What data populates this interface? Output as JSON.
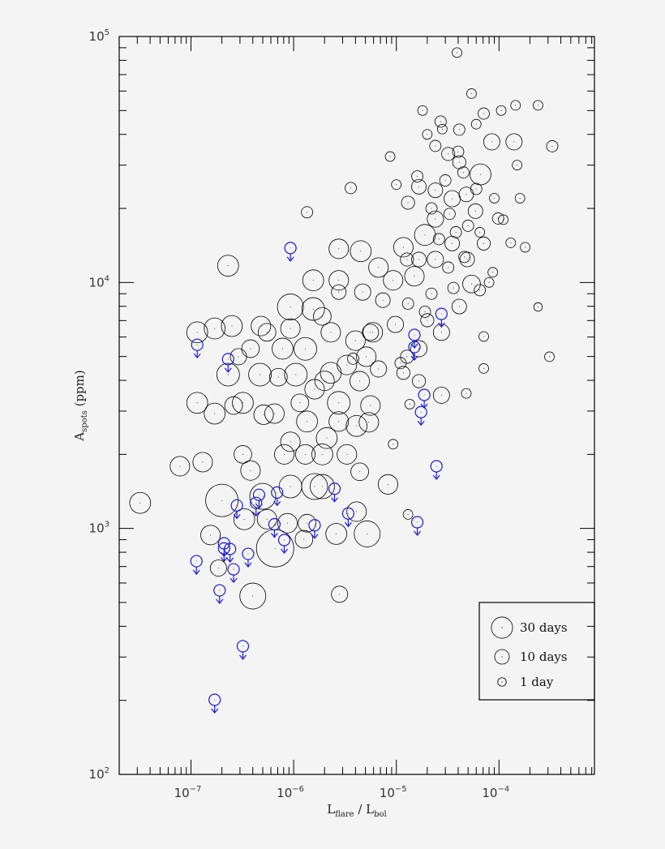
{
  "chart_data": {
    "type": "scatter",
    "title": "",
    "xlabel": {
      "main": "L",
      "sub1": "flare",
      "sep": " / ",
      "main2": "L",
      "sub2": "bol"
    },
    "ylabel": {
      "main": "A",
      "sub": "spots",
      "unit": " (ppm)"
    },
    "x_scale": "log",
    "y_scale": "log",
    "xlim": [
      2e-08,
      0.00085
    ],
    "ylim": [
      100,
      100000
    ],
    "grid": false,
    "x_ticks": [
      {
        "value": 1e-07,
        "base": "10",
        "exp": "−7"
      },
      {
        "value": 1e-06,
        "base": "10",
        "exp": "−6"
      },
      {
        "value": 1e-05,
        "base": "10",
        "exp": "−5"
      },
      {
        "value": 0.0001,
        "base": "10",
        "exp": "−4"
      }
    ],
    "y_ticks": [
      {
        "value": 100,
        "base": "10",
        "exp": "2"
      },
      {
        "value": 1000,
        "base": "10",
        "exp": "3"
      },
      {
        "value": 10000,
        "base": "10",
        "exp": "4"
      },
      {
        "value": 100000,
        "base": "10",
        "exp": "5"
      }
    ],
    "marker_size_encodes": "days",
    "legend": {
      "placement": "bottom-right",
      "entries": [
        {
          "label": "30 days",
          "days": 30
        },
        {
          "label": "10 days",
          "days": 10
        },
        {
          "label": "1 day",
          "days": 1
        }
      ]
    },
    "colors": {
      "detections": "#000000",
      "upper_limits": "#1a1ad6",
      "background": "#f4f4f4"
    },
    "series": [
      {
        "kind": "detections",
        "fields": [
          "x",
          "y",
          "days"
        ],
        "points": [
          [
            3.2e-08,
            1270,
            29
          ],
          [
            7.8e-08,
            1790,
            24
          ],
          [
            1.3e-07,
            1860,
            24
          ],
          [
            2.3e-07,
            11700,
            29
          ],
          [
            1.15e-07,
            6270,
            29
          ],
          [
            2.5e-07,
            6650,
            29
          ],
          [
            4.8e-07,
            6650,
            24
          ],
          [
            2.3e-07,
            4220,
            36
          ],
          [
            1.15e-07,
            3240,
            29
          ],
          [
            1.7e-07,
            2930,
            29
          ],
          [
            3.2e-07,
            3240,
            29
          ],
          [
            5.1e-07,
            2900,
            24
          ],
          [
            4.7e-07,
            4220,
            36
          ],
          [
            2e-07,
            1300,
            89
          ],
          [
            3.3e-07,
            1090,
            29
          ],
          [
            6.6e-07,
            830,
            124
          ],
          [
            4e-07,
            531,
            51
          ],
          [
            5e-07,
            1350,
            51
          ],
          [
            9.3e-07,
            1480,
            36
          ],
          [
            1.6e-06,
            1480,
            51
          ],
          [
            1.3e-06,
            2000,
            24
          ],
          [
            8.1e-07,
            2000,
            24
          ],
          [
            2.1e-06,
            2330,
            29
          ],
          [
            4.1e-06,
            2610,
            29
          ],
          [
            5.4e-06,
            2700,
            24
          ],
          [
            2.6e-06,
            950,
            29
          ],
          [
            5.2e-06,
            950,
            51
          ],
          [
            2.8e-06,
            540,
            14
          ],
          [
            1.26e-06,
            904,
            18
          ],
          [
            4.1e-06,
            1170,
            24
          ],
          [
            8.3e-06,
            1510,
            24
          ],
          [
            4.4e-06,
            1700,
            18
          ],
          [
            9.3e-07,
            7950,
            51
          ],
          [
            1.55e-06,
            7800,
            36
          ],
          [
            1.3e-06,
            5370,
            36
          ],
          [
            2.3e-06,
            6270,
            24
          ],
          [
            1.05e-06,
            4220,
            36
          ],
          [
            2e-06,
            3980,
            24
          ],
          [
            1.15e-06,
            3240,
            18
          ],
          [
            2.75e-06,
            3240,
            36
          ],
          [
            1.55e-06,
            10200,
            29
          ],
          [
            2.75e-06,
            10200,
            24
          ],
          [
            4e-06,
            5800,
            24
          ],
          [
            5.9e-06,
            6270,
            24
          ],
          [
            9.3e-06,
            10200,
            24
          ],
          [
            6.7e-06,
            11500,
            24
          ],
          [
            4.5e-06,
            13400,
            29
          ],
          [
            2.75e-06,
            13700,
            24
          ],
          [
            1.5e-05,
            10600,
            24
          ],
          [
            1.17e-05,
            13900,
            24
          ],
          [
            1.9e-05,
            15600,
            29
          ],
          [
            2.4e-05,
            18100,
            14
          ],
          [
            3.5e-05,
            21900,
            14
          ],
          [
            6.6e-05,
            27500,
            29
          ],
          [
            8.5e-05,
            37300,
            14
          ],
          [
            0.00014,
            37300,
            14
          ],
          [
            0.00033,
            35800,
            4
          ],
          [
            0.00024,
            52500,
            2
          ],
          [
            0.000145,
            52500,
            2
          ],
          [
            3.9e-05,
            86000,
            2
          ],
          [
            5.4e-05,
            58600,
            2
          ],
          [
            1.8e-05,
            50000,
            2
          ],
          [
            2.4e-05,
            35900,
            4
          ],
          [
            8.7e-06,
            32500,
            2
          ],
          [
            3.6e-06,
            24200,
            4
          ],
          [
            1.35e-06,
            19300,
            4
          ],
          [
            0.00031,
            4990,
            2
          ],
          [
            7.1e-05,
            6030,
            2
          ],
          [
            7.1e-05,
            4470,
            2
          ],
          [
            4.8e-05,
            3540,
            2
          ],
          [
            2.75e-05,
            3480,
            14
          ],
          [
            1.35e-05,
            3200,
            2
          ],
          [
            9.3e-06,
            2200,
            2
          ],
          [
            1.3e-05,
            1140,
            2
          ],
          [
            4.1e-05,
            7980,
            10
          ],
          [
            5.4e-05,
            9860,
            18
          ],
          [
            8.7e-05,
            11000,
            2
          ],
          [
            9.8e-05,
            18200,
            4
          ],
          [
            0.00018,
            13900,
            2
          ],
          [
            0.00024,
            7950,
            1
          ],
          [
            2.75e-05,
            6270,
            14
          ],
          [
            2e-05,
            7020,
            7
          ],
          [
            1.66e-05,
            5380,
            14
          ],
          [
            1.27e-05,
            4990,
            7
          ],
          [
            2.4e-05,
            23700,
            10
          ],
          [
            1.66e-05,
            24500,
            10
          ],
          [
            1.3e-05,
            21100,
            7
          ],
          [
            3.2e-05,
            33300,
            7
          ],
          [
            4.1e-05,
            41800,
            4
          ],
          [
            2.7e-05,
            45100,
            4
          ],
          [
            7.1e-05,
            48600,
            4
          ],
          [
            4.1e-05,
            30800,
            7
          ],
          [
            4.8e-05,
            22800,
            10
          ],
          [
            5.9e-05,
            19500,
            10
          ],
          [
            3.5e-05,
            14400,
            10
          ],
          [
            2.4e-05,
            12400,
            14
          ],
          [
            1.66e-05,
            12400,
            10
          ],
          [
            1.27e-05,
            12400,
            7
          ],
          [
            4.9e-05,
            12400,
            10
          ],
          [
            7.1e-05,
            14400,
            7
          ],
          [
            7.4e-06,
            8470,
            10
          ],
          [
            9.8e-06,
            6750,
            14
          ],
          [
            5.1e-06,
            4990,
            24
          ],
          [
            6.7e-06,
            4450,
            14
          ],
          [
            1.17e-05,
            4290,
            7
          ],
          [
            1.66e-05,
            3970,
            7
          ],
          [
            4.4e-06,
            3970,
            24
          ],
          [
            4.7e-06,
            9140,
            14
          ],
          [
            2.75e-06,
            9140,
            10
          ],
          [
            1.9e-06,
            7280,
            18
          ],
          [
            5.6e-06,
            6270,
            14
          ],
          [
            3.3e-06,
            4620,
            24
          ],
          [
            2.3e-06,
            4290,
            29
          ],
          [
            1.6e-06,
            3680,
            24
          ],
          [
            7.8e-07,
            5380,
            29
          ],
          [
            7.1e-07,
            4120,
            18
          ],
          [
            6.5e-07,
            2930,
            24
          ],
          [
            1.35e-06,
            2720,
            29
          ],
          [
            2.75e-06,
            2720,
            24
          ],
          [
            5.6e-06,
            3160,
            24
          ],
          [
            1.9e-06,
            2000,
            29
          ],
          [
            3.3e-06,
            2000,
            24
          ],
          [
            3.8e-07,
            1720,
            24
          ],
          [
            9.3e-07,
            2250,
            24
          ],
          [
            3.2e-07,
            2000,
            18
          ],
          [
            2.6e-07,
            3160,
            18
          ],
          [
            3.8e-07,
            5380,
            18
          ],
          [
            2.9e-07,
            4990,
            14
          ],
          [
            1.7e-07,
            6500,
            29
          ],
          [
            9.3e-07,
            6500,
            24
          ],
          [
            5.5e-07,
            6270,
            18
          ],
          [
            1.55e-07,
            940,
            24
          ],
          [
            1.85e-07,
            690,
            14
          ],
          [
            1.9e-06,
            1480,
            43
          ],
          [
            5.5e-07,
            1090,
            24
          ],
          [
            1.35e-06,
            1050,
            18
          ],
          [
            8.7e-07,
            1050,
            24
          ],
          [
            3e-05,
            26000,
            4
          ],
          [
            4.5e-05,
            28000,
            4
          ],
          [
            5e-05,
            17000,
            4
          ],
          [
            3.8e-05,
            16000,
            4
          ],
          [
            6e-05,
            24000,
            4
          ],
          [
            2.2e-05,
            20000,
            4
          ],
          [
            3.2e-05,
            11500,
            4
          ],
          [
            6.5e-05,
            16000,
            2
          ],
          [
            9e-05,
            22000,
            2
          ],
          [
            0.00011,
            18000,
            2
          ],
          [
            0.00013,
            14500,
            2
          ],
          [
            0.00016,
            22000,
            2
          ],
          [
            0.00015,
            30000,
            2
          ],
          [
            2.8e-05,
            42000,
            2
          ],
          [
            6e-05,
            44000,
            2
          ],
          [
            0.000105,
            50000,
            2
          ],
          [
            2e-05,
            40000,
            2
          ],
          [
            1e-05,
            25000,
            2
          ],
          [
            1.6e-05,
            27000,
            4
          ],
          [
            4e-05,
            34000,
            4
          ],
          [
            3.3e-05,
            19000,
            4
          ],
          [
            2.6e-05,
            15000,
            4
          ],
          [
            4.6e-05,
            12700,
            4
          ],
          [
            3.6e-05,
            9500,
            4
          ],
          [
            2.2e-05,
            9000,
            4
          ],
          [
            6.5e-05,
            9300,
            4
          ],
          [
            8e-05,
            10000,
            2
          ],
          [
            1.3e-05,
            8200,
            4
          ],
          [
            1.9e-05,
            7600,
            4
          ],
          [
            3.8e-06,
            4900,
            4
          ],
          [
            1.1e-05,
            4700,
            4
          ]
        ]
      },
      {
        "kind": "upper_limits",
        "fields": [
          "x",
          "y"
        ],
        "points": [
          [
            9.3e-07,
            13800
          ],
          [
            1.15e-07,
            5580
          ],
          [
            2.3e-07,
            4880
          ],
          [
            2.75e-05,
            7450
          ],
          [
            1.5e-05,
            6120
          ],
          [
            1.5e-05,
            5460
          ],
          [
            1.87e-05,
            3490
          ],
          [
            1.74e-05,
            2970
          ],
          [
            2.46e-05,
            1790
          ],
          [
            2.5e-06,
            1450
          ],
          [
            2.8e-07,
            1240
          ],
          [
            4.6e-07,
            1370
          ],
          [
            4.3e-07,
            1270
          ],
          [
            6.9e-07,
            1400
          ],
          [
            3.4e-06,
            1150
          ],
          [
            6.5e-07,
            1040
          ],
          [
            1.6e-05,
            1060
          ],
          [
            1.6e-06,
            1030
          ],
          [
            8.1e-07,
            897
          ],
          [
            2.1e-07,
            870
          ],
          [
            2.1e-07,
            830
          ],
          [
            2.4e-07,
            825
          ],
          [
            3.6e-07,
            788
          ],
          [
            2.6e-07,
            682
          ],
          [
            1.13e-07,
            736
          ],
          [
            1.9e-07,
            560
          ],
          [
            3.2e-07,
            332
          ],
          [
            1.7e-07,
            201
          ]
        ]
      }
    ]
  }
}
